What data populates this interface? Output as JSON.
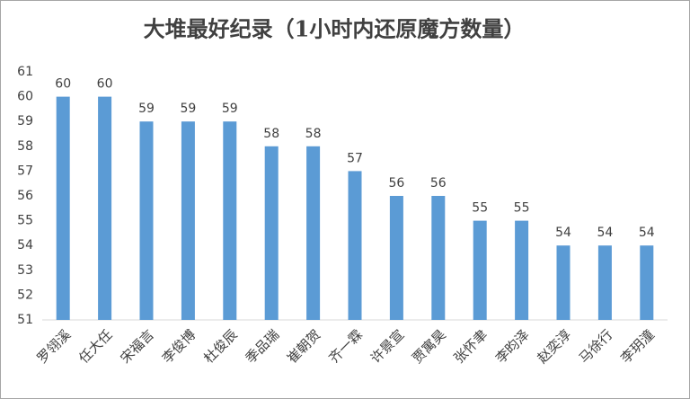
{
  "chart_data": {
    "type": "bar",
    "title": "大堆最好纪录（1小时内还原魔方数量）",
    "categories": [
      "罗翎溪",
      "任大任",
      "宋福言",
      "李俊博",
      "杜俊辰",
      "季品瑞",
      "崔朝贺",
      "齐一霖",
      "许景宣",
      "贾寓昊",
      "张怀聿",
      "李昀泽",
      "赵奕淳",
      "马徐行",
      "李玥潼"
    ],
    "values": [
      60,
      60,
      59,
      59,
      59,
      58,
      58,
      57,
      56,
      56,
      55,
      55,
      54,
      54,
      54
    ],
    "color": "#5b9bd5",
    "ylim": [
      51,
      61
    ],
    "yticks": [
      51,
      52,
      53,
      54,
      55,
      56,
      57,
      58,
      59,
      60,
      61
    ],
    "grid": false
  }
}
